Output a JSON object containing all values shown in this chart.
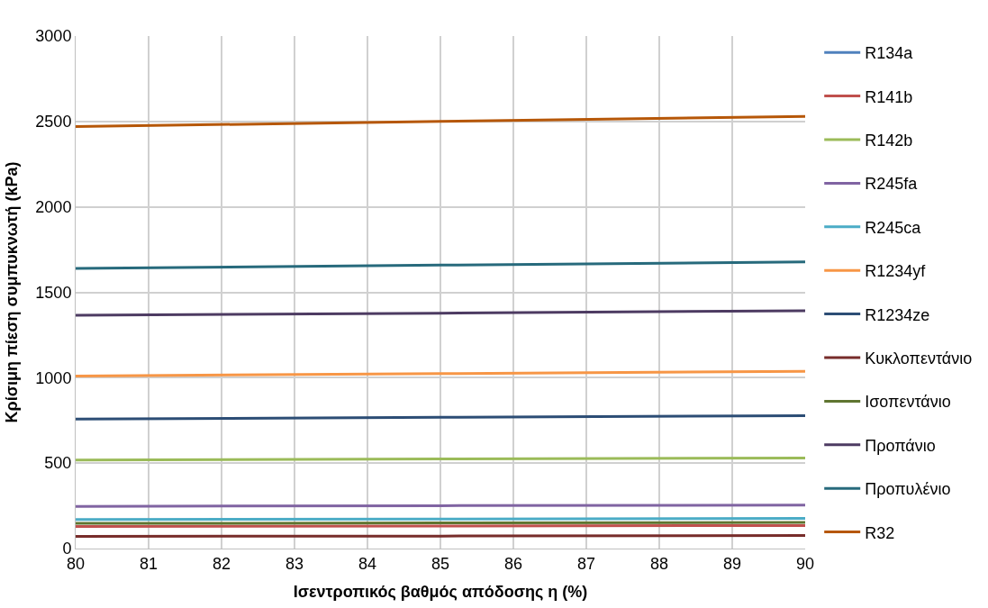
{
  "chart_data": {
    "type": "line",
    "xlabel": "Ισεντροπικός βαθμός απόδοσης η (%)",
    "ylabel": "Κρίσιμη πίεση συμπυκνωτή (kPa)",
    "x": [
      80,
      85,
      90
    ],
    "xlim": [
      80,
      90
    ],
    "xticks": [
      80,
      81,
      82,
      83,
      84,
      85,
      86,
      87,
      88,
      89,
      90
    ],
    "ylim": [
      0,
      3000
    ],
    "yticks": [
      0,
      500,
      1000,
      1500,
      2000,
      2500,
      3000
    ],
    "grid": true,
    "legend": "right",
    "marker": "none",
    "line_style": "solid",
    "series": [
      {
        "name": "R134a",
        "color": "#4f81bd",
        "values": [
          null,
          null,
          null
        ]
      },
      {
        "name": "R141b",
        "color": "#c0504d",
        "values": [
          129,
          132,
          135
        ]
      },
      {
        "name": "R142b",
        "color": "#9bbb59",
        "values": [
          518,
          524,
          530
        ]
      },
      {
        "name": "R245fa",
        "color": "#8064a2",
        "values": [
          247,
          251,
          255
        ]
      },
      {
        "name": "R245ca",
        "color": "#4bacc6",
        "values": [
          170,
          173,
          176
        ]
      },
      {
        "name": "R1234yf",
        "color": "#f79646",
        "values": [
          1010,
          1024,
          1038
        ]
      },
      {
        "name": "R1234ze",
        "color": "#2c4d75",
        "values": [
          758,
          768,
          778
        ]
      },
      {
        "name": "Κυκλοπεντάνιο",
        "color": "#772c2a",
        "values": [
          71,
          73,
          76
        ]
      },
      {
        "name": "Ισοπεντάνιο",
        "color": "#5f7530",
        "values": [
          147,
          150,
          153
        ]
      },
      {
        "name": "Προπάνιο",
        "color": "#4d3b62",
        "values": [
          1365,
          1378,
          1392
        ]
      },
      {
        "name": "Προπυλένιο",
        "color": "#276a7c",
        "values": [
          1640,
          1659,
          1678
        ]
      },
      {
        "name": "R32",
        "color": "#b65708",
        "values": [
          2470,
          2500,
          2530
        ]
      }
    ]
  }
}
